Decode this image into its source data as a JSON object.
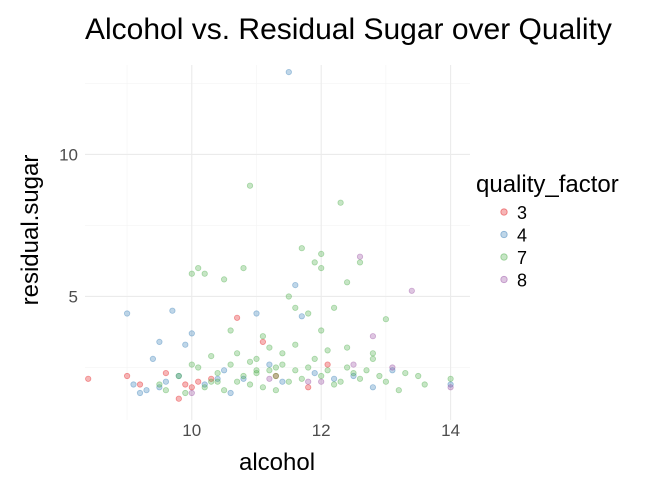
{
  "chart_data": {
    "type": "scatter",
    "title": "Alcohol vs. Residual Sugar over Quality",
    "xlabel": "alcohol",
    "ylabel": "residual.sugar",
    "xlim": [
      8.35,
      14.3
    ],
    "ylim": [
      0.65,
      13.15
    ],
    "x_ticks": [
      10,
      12,
      14
    ],
    "y_ticks": [
      5,
      10
    ],
    "x_tick_labels": [
      "10",
      "12",
      "14"
    ],
    "y_tick_labels": [
      "5",
      "10"
    ],
    "grid": true,
    "legend": {
      "title": "quality_factor",
      "position": "right"
    },
    "series": [
      {
        "name": "3",
        "color": "#e41a1c",
        "points": [
          [
            8.4,
            2.1
          ],
          [
            9.0,
            2.2
          ],
          [
            9.2,
            1.9
          ],
          [
            9.8,
            1.4
          ],
          [
            9.9,
            1.9
          ],
          [
            10.0,
            1.8
          ],
          [
            10.1,
            2.0
          ],
          [
            10.3,
            2.1
          ],
          [
            10.7,
            4.25
          ],
          [
            11.1,
            3.4
          ],
          [
            11.3,
            2.2
          ],
          [
            11.8,
            1.8
          ],
          [
            12.1,
            2.6
          ],
          [
            9.6,
            2.3
          ]
        ]
      },
      {
        "name": "4",
        "color": "#377eb8",
        "points": [
          [
            9.0,
            4.4
          ],
          [
            9.1,
            1.9
          ],
          [
            9.2,
            1.6
          ],
          [
            9.3,
            1.7
          ],
          [
            9.4,
            2.8
          ],
          [
            9.5,
            3.4
          ],
          [
            9.7,
            4.5
          ],
          [
            9.9,
            3.3
          ],
          [
            10.0,
            3.7
          ],
          [
            9.6,
            2.0
          ],
          [
            9.8,
            2.2
          ],
          [
            10.2,
            1.9
          ],
          [
            10.5,
            2.4
          ],
          [
            10.6,
            1.6
          ],
          [
            10.8,
            2.1
          ],
          [
            11.0,
            4.4
          ],
          [
            11.5,
            12.9
          ],
          [
            11.2,
            2.6
          ],
          [
            11.4,
            2.0
          ],
          [
            11.7,
            4.3
          ],
          [
            11.9,
            2.3
          ],
          [
            12.2,
            2.1
          ],
          [
            12.5,
            2.2
          ],
          [
            12.8,
            1.8
          ],
          [
            13.1,
            2.4
          ],
          [
            14.0,
            1.9
          ],
          [
            10.4,
            2.1
          ],
          [
            9.5,
            1.8
          ],
          [
            11.6,
            5.4
          ]
        ]
      },
      {
        "name": "7",
        "color": "#4daf4a",
        "points": [
          [
            9.6,
            1.7
          ],
          [
            9.8,
            2.2
          ],
          [
            10.0,
            5.8
          ],
          [
            10.1,
            6.0
          ],
          [
            10.1,
            2.5
          ],
          [
            10.2,
            1.8
          ],
          [
            10.2,
            5.8
          ],
          [
            10.3,
            2.0
          ],
          [
            10.4,
            2.3
          ],
          [
            10.5,
            5.6
          ],
          [
            10.5,
            1.7
          ],
          [
            10.6,
            2.6
          ],
          [
            10.7,
            3.0
          ],
          [
            10.7,
            2.0
          ],
          [
            10.8,
            6.0
          ],
          [
            10.8,
            2.2
          ],
          [
            10.9,
            8.9
          ],
          [
            10.9,
            1.9
          ],
          [
            11.0,
            2.3
          ],
          [
            11.0,
            2.8
          ],
          [
            11.1,
            1.8
          ],
          [
            11.1,
            3.6
          ],
          [
            11.2,
            2.4
          ],
          [
            11.3,
            1.7
          ],
          [
            11.3,
            2.2
          ],
          [
            11.4,
            2.6
          ],
          [
            11.5,
            2.0
          ],
          [
            11.5,
            5.0
          ],
          [
            11.6,
            2.4
          ],
          [
            11.6,
            4.6
          ],
          [
            11.7,
            6.7
          ],
          [
            11.7,
            2.1
          ],
          [
            11.8,
            2.5
          ],
          [
            11.8,
            4.4
          ],
          [
            11.9,
            2.8
          ],
          [
            11.9,
            6.2
          ],
          [
            12.0,
            2.2
          ],
          [
            12.0,
            6.5
          ],
          [
            12.0,
            6.0
          ],
          [
            12.1,
            2.4
          ],
          [
            12.1,
            3.1
          ],
          [
            12.2,
            1.9
          ],
          [
            12.2,
            4.6
          ],
          [
            12.3,
            8.3
          ],
          [
            12.3,
            2.0
          ],
          [
            12.4,
            2.5
          ],
          [
            12.4,
            5.5
          ],
          [
            12.5,
            2.3
          ],
          [
            12.6,
            6.2
          ],
          [
            12.6,
            2.1
          ],
          [
            12.7,
            2.4
          ],
          [
            12.8,
            2.8
          ],
          [
            12.9,
            2.2
          ],
          [
            13.0,
            4.2
          ],
          [
            13.0,
            2.0
          ],
          [
            13.2,
            1.7
          ],
          [
            13.3,
            2.3
          ],
          [
            13.5,
            2.2
          ],
          [
            13.6,
            1.9
          ],
          [
            14.0,
            2.1
          ],
          [
            10.6,
            3.8
          ],
          [
            11.2,
            3.2
          ],
          [
            11.4,
            3.0
          ],
          [
            10.3,
            2.9
          ],
          [
            10.9,
            2.7
          ],
          [
            11.6,
            3.3
          ],
          [
            12.0,
            3.8
          ],
          [
            12.4,
            3.2
          ],
          [
            12.8,
            3.0
          ],
          [
            11.3,
            2.5
          ],
          [
            11.0,
            2.4
          ],
          [
            10.4,
            2.0
          ],
          [
            10.0,
            2.6
          ],
          [
            9.9,
            1.6
          ],
          [
            9.5,
            1.9
          ]
        ]
      },
      {
        "name": "8",
        "color": "#984ea3",
        "points": [
          [
            12.6,
            6.4
          ],
          [
            13.4,
            5.2
          ],
          [
            12.8,
            3.6
          ],
          [
            12.0,
            2.0
          ],
          [
            11.2,
            2.1
          ],
          [
            10.0,
            1.6
          ],
          [
            13.1,
            2.5
          ],
          [
            12.5,
            2.6
          ],
          [
            11.8,
            2.0
          ],
          [
            14.0,
            1.8
          ]
        ]
      }
    ]
  }
}
